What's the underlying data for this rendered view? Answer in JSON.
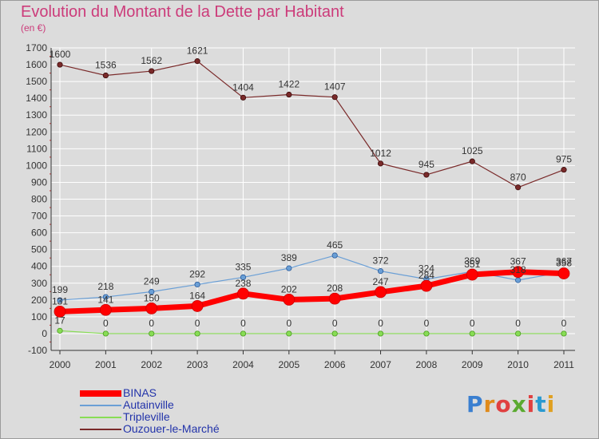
{
  "title": "Evolution du Montant de la Dette par Habitant",
  "subtitle": "(en €)",
  "logo": {
    "text": "Proxiti",
    "colors": [
      "#3a7fd0",
      "#e08a1a",
      "#e04040",
      "#5aaa30",
      "#e04040",
      "#2a9ad0",
      "#e0a020"
    ]
  },
  "chart_data": {
    "type": "line",
    "x": [
      "2000",
      "2001",
      "2002",
      "2003",
      "2004",
      "2005",
      "2006",
      "2007",
      "2008",
      "2009",
      "2010",
      "2011"
    ],
    "ylim": [
      -100,
      1700
    ],
    "yticks": [
      -100,
      0,
      100,
      200,
      300,
      400,
      500,
      600,
      700,
      800,
      900,
      1000,
      1100,
      1200,
      1300,
      1400,
      1500,
      1600,
      1700
    ],
    "grid": true,
    "legend_position": "bottom-left",
    "series": [
      {
        "name": "BINAS",
        "color": "#ff0000",
        "values": [
          131,
          141,
          150,
          164,
          238,
          202,
          208,
          247,
          284,
          351,
          367,
          358
        ],
        "labels": [
          "131",
          "141",
          "150",
          "164",
          "238",
          "202",
          "208",
          "247",
          "284",
          "351",
          "367",
          "358"
        ]
      },
      {
        "name": "Autainville",
        "color": "#6a9fd6",
        "values": [
          199,
          218,
          249,
          292,
          335,
          389,
          465,
          372,
          324,
          369,
          318,
          367
        ],
        "labels": [
          "199",
          "218",
          "249",
          "292",
          "335",
          "389",
          "465",
          "372",
          "324",
          "369",
          "318",
          "367"
        ]
      },
      {
        "name": "Tripleville",
        "color": "#88dd55",
        "values": [
          17,
          0,
          0,
          0,
          0,
          0,
          0,
          0,
          0,
          0,
          0,
          0
        ],
        "labels": [
          "17",
          "0",
          "0",
          "0",
          "0",
          "0",
          "0",
          "0",
          "0",
          "0",
          "0",
          "0"
        ]
      },
      {
        "name": "Ouzouer-le-Marché",
        "color": "#7a2a2a",
        "values": [
          1600,
          1536,
          1562,
          1621,
          1404,
          1422,
          1407,
          1012,
          945,
          1025,
          870,
          975
        ],
        "labels": [
          "1600",
          "1536",
          "1562",
          "1621",
          "1404",
          "1422",
          "1407",
          "1012",
          "945",
          "1025",
          "870",
          "975"
        ]
      }
    ]
  }
}
